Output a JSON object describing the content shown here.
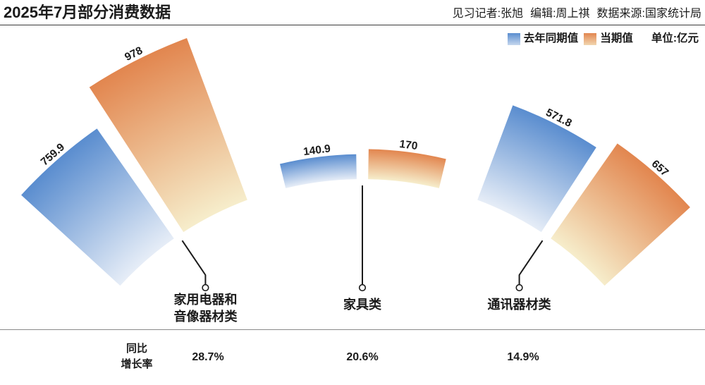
{
  "credits": {
    "reporter": "见习记者:张旭",
    "editor": "编辑:周上祺",
    "source": "数据来源:国家统计局"
  },
  "chart_data": {
    "type": "bar",
    "orientation": "radial",
    "title": "2025年7月部分消费数据",
    "unit": "单位:亿元",
    "categories": [
      "家用电器和音像器材类",
      "家具类",
      "通讯器材类"
    ],
    "series": [
      {
        "name": "去年同期值",
        "values": [
          759.9,
          140.9,
          571.8
        ],
        "color": "#5a8dcf",
        "color_light": "#e6edf7"
      },
      {
        "name": "当期值",
        "values": [
          978,
          170,
          657
        ],
        "color": "#e2864f",
        "color_light": "#f6edcb"
      }
    ],
    "legend_position": "top-right",
    "grid": false,
    "yoy_growth": {
      "label_lines": [
        "同比",
        "增长率"
      ],
      "values": [
        "28.7%",
        "20.6%",
        "14.9%"
      ]
    }
  }
}
